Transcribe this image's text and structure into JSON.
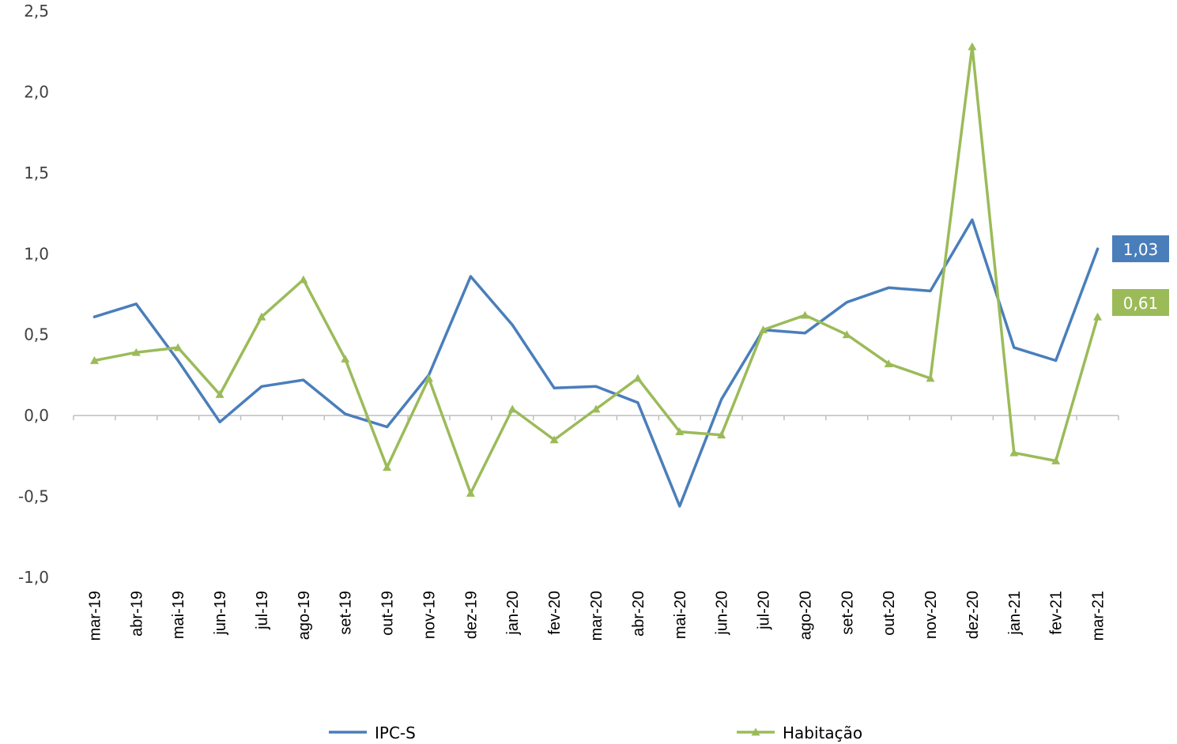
{
  "chart_data": {
    "type": "line",
    "title": "",
    "xlabel": "",
    "ylabel": "",
    "ylim": [
      -1.0,
      2.5
    ],
    "y_ticks": [
      "-1,0",
      "-0,5",
      "0,0",
      "0,5",
      "1,0",
      "1,5",
      "2,0",
      "2,5"
    ],
    "y_tick_values": [
      -1.0,
      -0.5,
      0.0,
      0.5,
      1.0,
      1.5,
      2.0,
      2.5
    ],
    "grid": false,
    "legend_position": "bottom",
    "categories": [
      "mar-19",
      "abr-19",
      "mai-19",
      "jun-19",
      "jul-19",
      "ago-19",
      "set-19",
      "out-19",
      "nov-19",
      "dez-19",
      "jan-20",
      "fev-20",
      "mar-20",
      "abr-20",
      "mai-20",
      "jun-20",
      "jul-20",
      "ago-20",
      "set-20",
      "out-20",
      "nov-20",
      "dez-20",
      "jan-21",
      "fev-21",
      "mar-21"
    ],
    "series": [
      {
        "name": "IPC-S",
        "color": "#4a7ebb",
        "marker": "none",
        "values": [
          0.61,
          0.69,
          0.34,
          -0.04,
          0.18,
          0.22,
          0.01,
          -0.07,
          0.25,
          0.86,
          0.56,
          0.17,
          0.18,
          0.08,
          -0.56,
          0.1,
          0.53,
          0.51,
          0.7,
          0.79,
          0.77,
          1.21,
          0.42,
          0.34,
          1.03
        ],
        "end_label": "1,03"
      },
      {
        "name": "Habitação",
        "color": "#9bbb59",
        "marker": "triangle",
        "values": [
          0.34,
          0.39,
          0.42,
          0.13,
          0.61,
          0.84,
          0.35,
          -0.32,
          0.23,
          -0.48,
          0.04,
          -0.15,
          0.04,
          0.23,
          -0.1,
          -0.12,
          0.53,
          0.62,
          0.5,
          0.32,
          0.23,
          2.28,
          -0.23,
          -0.28,
          0.61
        ],
        "end_label": "0,61"
      }
    ]
  }
}
